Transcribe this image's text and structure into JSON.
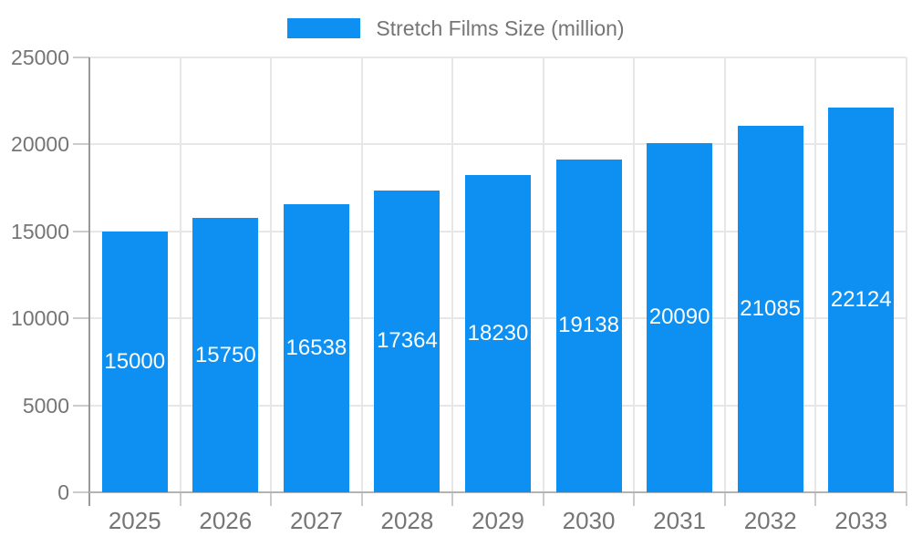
{
  "chart_data": {
    "type": "bar",
    "title": "Stretch Films Size (million)",
    "legend_position": "top",
    "categories": [
      "2025",
      "2026",
      "2027",
      "2028",
      "2029",
      "2030",
      "2031",
      "2032",
      "2033"
    ],
    "values": [
      15000,
      15750,
      16538,
      17364,
      18230,
      19138,
      20090,
      21085,
      22124
    ],
    "value_labels": [
      "15000",
      "15750",
      "16538",
      "17364",
      "18230",
      "19138",
      "20090",
      "21085",
      "22124"
    ],
    "xlabel": "",
    "ylabel": "",
    "ylim": [
      0,
      25000
    ],
    "yticks": [
      0,
      5000,
      10000,
      15000,
      20000,
      25000
    ],
    "ytick_labels": [
      "0",
      "5000",
      "10000",
      "15000",
      "20000",
      "25000"
    ],
    "grid": true,
    "colors": {
      "bar": "#0d90f2",
      "value_label": "#ffffff",
      "axis_text": "#757575",
      "gridline": "#e7e7e7",
      "y_axis_line": "#999999",
      "x_axis_line": "#b3b3b3",
      "tick": "#cccccc"
    }
  }
}
